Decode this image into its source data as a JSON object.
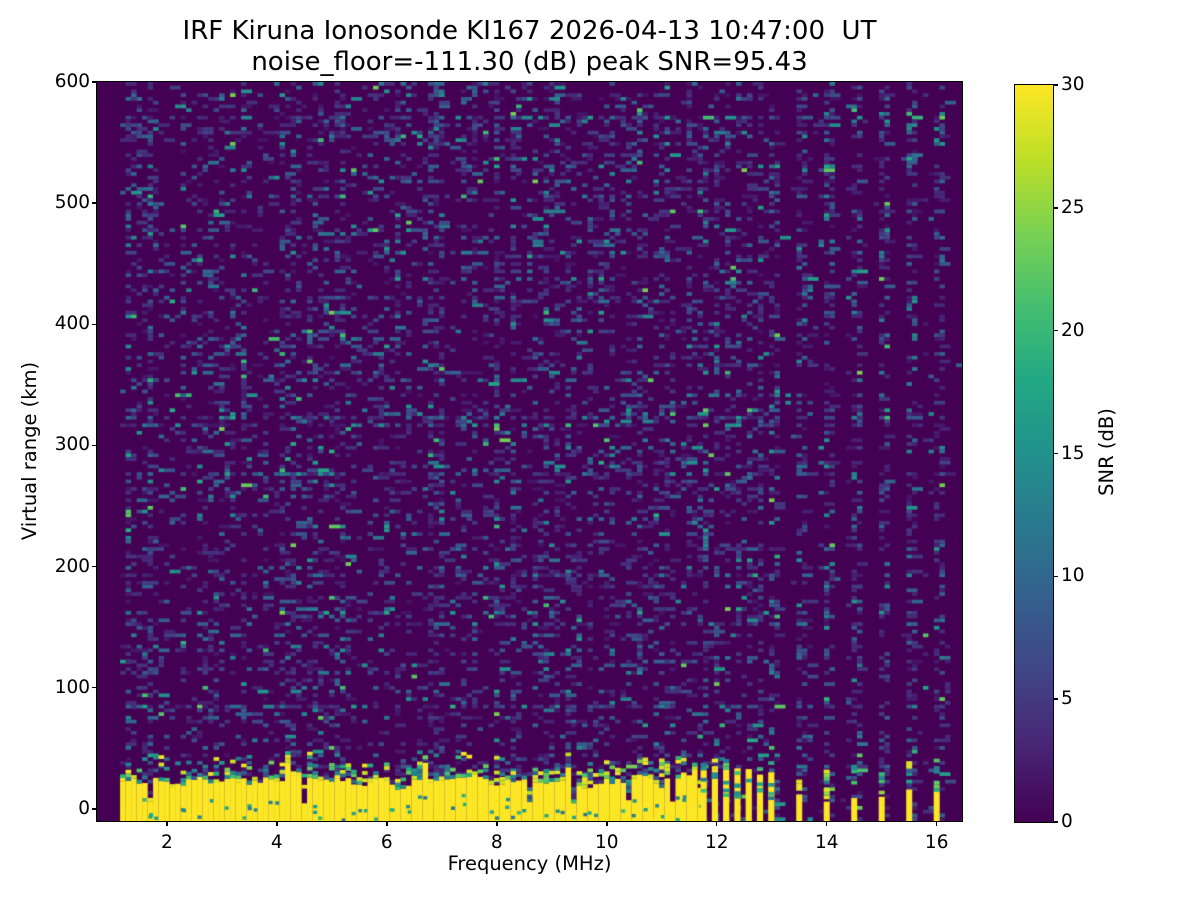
{
  "chart_data": {
    "type": "heatmap",
    "title": "IRF Kiruna Ionosonde KI167 2026-04-13 10:47:00  UT",
    "subtitle": "noise_floor=-111.30 (dB) peak SNR=95.43",
    "xlabel": "Frequency (MHz)",
    "ylabel": "Virtual range (km)",
    "xlim": [
      0.73,
      16.46
    ],
    "ylim": [
      -10,
      600
    ],
    "xticks": [
      2,
      4,
      6,
      8,
      10,
      12,
      14,
      16
    ],
    "yticks": [
      0,
      100,
      200,
      300,
      400,
      500,
      600
    ],
    "grid": false,
    "colormap": "viridis",
    "colorbar": {
      "label": "SNR (dB)",
      "ticks": [
        0,
        5,
        10,
        15,
        20,
        25,
        30
      ],
      "vmin": 0,
      "vmax": 30
    },
    "station": {
      "name": "IRF Kiruna Ionosonde",
      "code": "KI167",
      "datetime_ut": "2026-04-13 10:47:00",
      "noise_floor_db": -111.3,
      "peak_snr_db": 95.43
    },
    "features": {
      "data_freq_range_mhz": [
        1.15,
        16.45
      ],
      "freq_bin_mhz": 0.1,
      "range_bin_km": 3.1,
      "ground_clutter": {
        "freq_range_mhz": [
          1.15,
          11.65
        ],
        "solid_top_km_min": 13,
        "solid_top_km_max": 31,
        "speckle_top_km": 45
      },
      "bar_cluster": {
        "start_mhz": 11.76,
        "spacing_mhz": 0.205,
        "count": 7,
        "solid_top_km": 30,
        "cap_top_km": 42
      },
      "sparse_bars": [
        {
          "freq_mhz": 13.5,
          "solid_top_km": 10,
          "stack_top_km": 38,
          "stack_density": 0.5
        },
        {
          "freq_mhz": 14.0,
          "solid_top_km": 6,
          "stack_top_km": 34,
          "stack_density": 0.45
        },
        {
          "freq_mhz": 14.5,
          "solid_top_km": 9,
          "stack_top_km": 36,
          "stack_density": 0.5
        },
        {
          "freq_mhz": 15.0,
          "solid_top_km": 10,
          "stack_top_km": 40,
          "stack_density": 0.5
        },
        {
          "freq_mhz": 15.5,
          "solid_top_km": 16,
          "stack_top_km": 40,
          "stack_density": 0.75
        },
        {
          "freq_mhz": 16.0,
          "solid_top_km": 15,
          "stack_top_km": 42,
          "stack_density": 0.8
        }
      ],
      "noise": {
        "dense_density": 0.2,
        "columnar_density": 0.33,
        "background_density": 0.006
      }
    },
    "render": {
      "seed": 1304713
    }
  }
}
